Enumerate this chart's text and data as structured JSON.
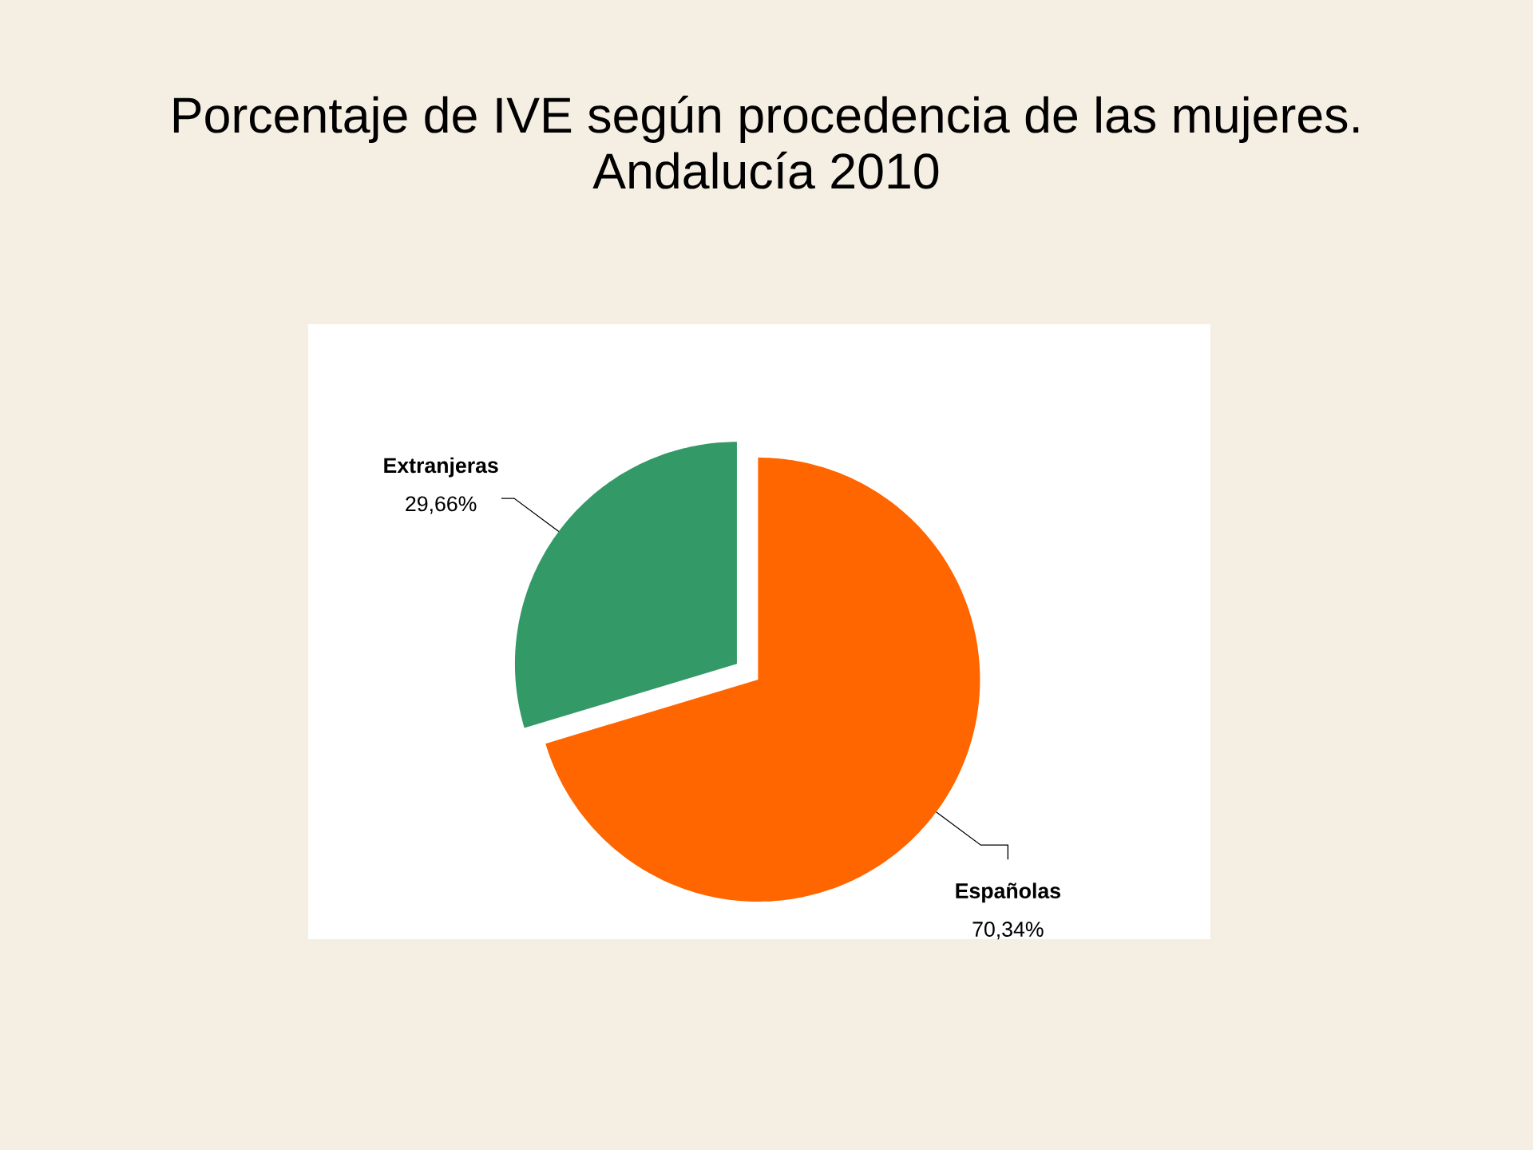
{
  "chart_data": {
    "type": "pie",
    "title": "Porcentaje  de IVE según procedencia de las mujeres.",
    "subtitle": "Andalucía 2010",
    "categories": [
      "Españolas",
      "Extranjeras"
    ],
    "values": [
      70.34,
      29.66
    ],
    "colors": [
      "#ff6600",
      "#339966"
    ],
    "value_labels": [
      "70,34%",
      "29,66%"
    ]
  }
}
